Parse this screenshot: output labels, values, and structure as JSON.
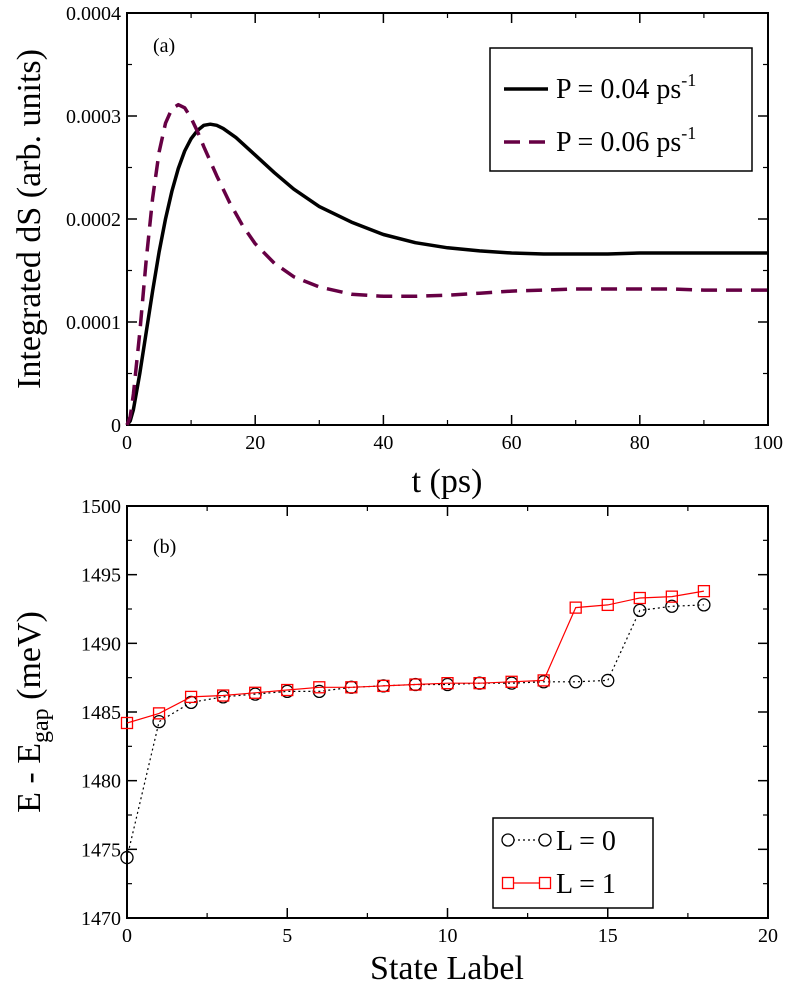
{
  "chart_data": [
    {
      "type": "line",
      "panel_label": "(a)",
      "xlabel": "t (ps)",
      "ylabel": "Integrated dS (arb. units)",
      "xlim": [
        0,
        100
      ],
      "ylim": [
        0,
        0.0004
      ],
      "x_ticks": [
        0,
        20,
        40,
        60,
        80,
        100
      ],
      "y_ticks": [
        0,
        0.0001,
        0.0002,
        0.0003,
        0.0004
      ],
      "x_tick_labels": [
        "0",
        "20",
        "40",
        "60",
        "80",
        "100"
      ],
      "y_tick_labels": [
        "0",
        "0.0001",
        "0.0002",
        "0.0003",
        "0.0004"
      ],
      "grid": false,
      "legend_position": "top-right",
      "series": [
        {
          "legend_base": "P = 0.04 ps",
          "legend_sup": "-1",
          "color": "#000000",
          "style": "solid",
          "x": [
            0,
            0.5,
            1,
            2,
            3,
            4,
            5,
            6,
            7,
            8,
            9,
            10,
            11,
            12,
            13,
            14,
            15,
            17,
            20,
            23,
            26,
            30,
            35,
            40,
            45,
            50,
            55,
            60,
            65,
            70,
            75,
            80,
            85,
            90,
            95,
            100
          ],
          "y": [
            0,
            4e-06,
            1.5e-05,
            5e-05,
            9e-05,
            0.00013,
            0.000168,
            0.0002,
            0.000227,
            0.000249,
            0.000266,
            0.000278,
            0.000286,
            0.000291,
            0.000292,
            0.000291,
            0.000288,
            0.000279,
            0.000262,
            0.000245,
            0.000229,
            0.000212,
            0.000197,
            0.000185,
            0.000177,
            0.000172,
            0.000169,
            0.000167,
            0.000166,
            0.000166,
            0.000166,
            0.000167,
            0.000167,
            0.000167,
            0.000167,
            0.000167
          ]
        },
        {
          "legend_base": "P = 0.06 ps",
          "legend_sup": "-1",
          "color": "#660044",
          "style": "dashed",
          "x": [
            0,
            0.5,
            1,
            1.5,
            2,
            3,
            4,
            5,
            6,
            7,
            8,
            9,
            10,
            11,
            12,
            14,
            16,
            18,
            20,
            23,
            26,
            30,
            35,
            40,
            45,
            50,
            55,
            60,
            65,
            70,
            75,
            80,
            85,
            90,
            95,
            100
          ],
          "y": [
            0,
            8e-06,
            3e-05,
            6e-05,
            9e-05,
            0.00016,
            0.00022,
            0.000265,
            0.000293,
            0.000307,
            0.000311,
            0.000308,
            0.000298,
            0.000285,
            0.00027,
            0.000242,
            0.000216,
            0.000194,
            0.000176,
            0.000157,
            0.000144,
            0.000134,
            0.000127,
            0.000125,
            0.000125,
            0.000126,
            0.000128,
            0.00013,
            0.000131,
            0.000132,
            0.000132,
            0.000132,
            0.000132,
            0.000131,
            0.000131,
            0.000131
          ]
        }
      ]
    },
    {
      "type": "line",
      "panel_label": "(b)",
      "xlabel": "State Label",
      "ylabel_base": "E - E",
      "ylabel_sub": "gap",
      "ylabel_unit": "(meV)",
      "xlim": [
        0,
        20
      ],
      "ylim": [
        1470,
        1500
      ],
      "x_ticks": [
        0,
        5,
        10,
        15,
        20
      ],
      "y_ticks": [
        1470,
        1475,
        1480,
        1485,
        1490,
        1495,
        1500
      ],
      "x_tick_labels": [
        "0",
        "5",
        "10",
        "15",
        "20"
      ],
      "y_tick_labels": [
        "1470",
        "1475",
        "1480",
        "1485",
        "1490",
        "1495",
        "1500"
      ],
      "grid": false,
      "legend_position": "bottom-right",
      "series": [
        {
          "name": "L = 0",
          "color": "#000000",
          "style": "dotted",
          "marker": "circle",
          "x": [
            0,
            1,
            2,
            3,
            4,
            5,
            6,
            7,
            8,
            9,
            10,
            11,
            12,
            13,
            14,
            15,
            16,
            17,
            18
          ],
          "y": [
            1474.4,
            1484.3,
            1485.7,
            1486.1,
            1486.3,
            1486.5,
            1486.5,
            1486.8,
            1486.9,
            1487.0,
            1487.0,
            1487.1,
            1487.1,
            1487.2,
            1487.2,
            1487.3,
            1492.4,
            1492.7,
            1492.8
          ]
        },
        {
          "name": "L = 1",
          "color": "#ff0000",
          "style": "solid",
          "marker": "square",
          "x": [
            0,
            1,
            2,
            3,
            4,
            5,
            6,
            7,
            8,
            9,
            10,
            11,
            12,
            13,
            14,
            15,
            16,
            17,
            18
          ],
          "y": [
            1484.2,
            1484.9,
            1486.1,
            1486.2,
            1486.4,
            1486.6,
            1486.8,
            1486.8,
            1486.9,
            1487.0,
            1487.1,
            1487.1,
            1487.2,
            1487.3,
            1492.6,
            1492.8,
            1493.3,
            1493.4,
            1493.8
          ]
        }
      ]
    }
  ]
}
